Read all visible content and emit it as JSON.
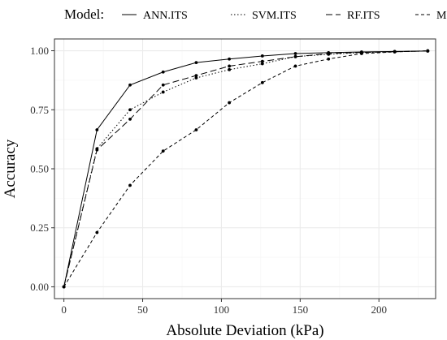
{
  "chart_data": {
    "type": "line",
    "title": "",
    "xlabel": "Absolute Deviation (kPa)",
    "ylabel": "Accuracy",
    "xlim": [
      -6,
      236
    ],
    "ylim": [
      -0.05,
      1.05
    ],
    "xticks": [
      0,
      50,
      100,
      150,
      200
    ],
    "yticks": [
      0.0,
      0.25,
      0.5,
      0.75,
      1.0
    ],
    "xtick_labels": [
      "0",
      "50",
      "100",
      "150",
      "200"
    ],
    "ytick_labels": [
      "0.00",
      "0.25",
      "0.50",
      "0.75",
      "1.00"
    ],
    "grid": true,
    "legend": {
      "title": "Model:",
      "position": "top"
    },
    "x": [
      0,
      21,
      42,
      63,
      84,
      105,
      126,
      147,
      168,
      189,
      210,
      231
    ],
    "series": [
      {
        "name": "ANN.ITS",
        "linestyle": "solid",
        "values": [
          0.0,
          0.665,
          0.855,
          0.91,
          0.95,
          0.965,
          0.978,
          0.988,
          0.992,
          0.995,
          0.997,
          0.999
        ]
      },
      {
        "name": "SVM.ITS",
        "linestyle": "dotted",
        "values": [
          0.0,
          0.585,
          0.75,
          0.825,
          0.885,
          0.92,
          0.945,
          0.975,
          0.985,
          0.992,
          0.996,
          0.999
        ]
      },
      {
        "name": "RF.ITS",
        "linestyle": "longdash",
        "values": [
          0.0,
          0.58,
          0.71,
          0.855,
          0.895,
          0.935,
          0.955,
          0.975,
          0.988,
          0.993,
          0.996,
          0.999
        ]
      },
      {
        "name": "MR.ITS",
        "linestyle": "dashed",
        "values": [
          0.0,
          0.23,
          0.43,
          0.575,
          0.665,
          0.78,
          0.865,
          0.935,
          0.965,
          0.988,
          0.995,
          1.0
        ]
      }
    ],
    "colors": {
      "line": "#000000",
      "panel_border": "#333333",
      "grid_major": "#ebebeb",
      "grid_minor": "#f4f4f4"
    }
  }
}
